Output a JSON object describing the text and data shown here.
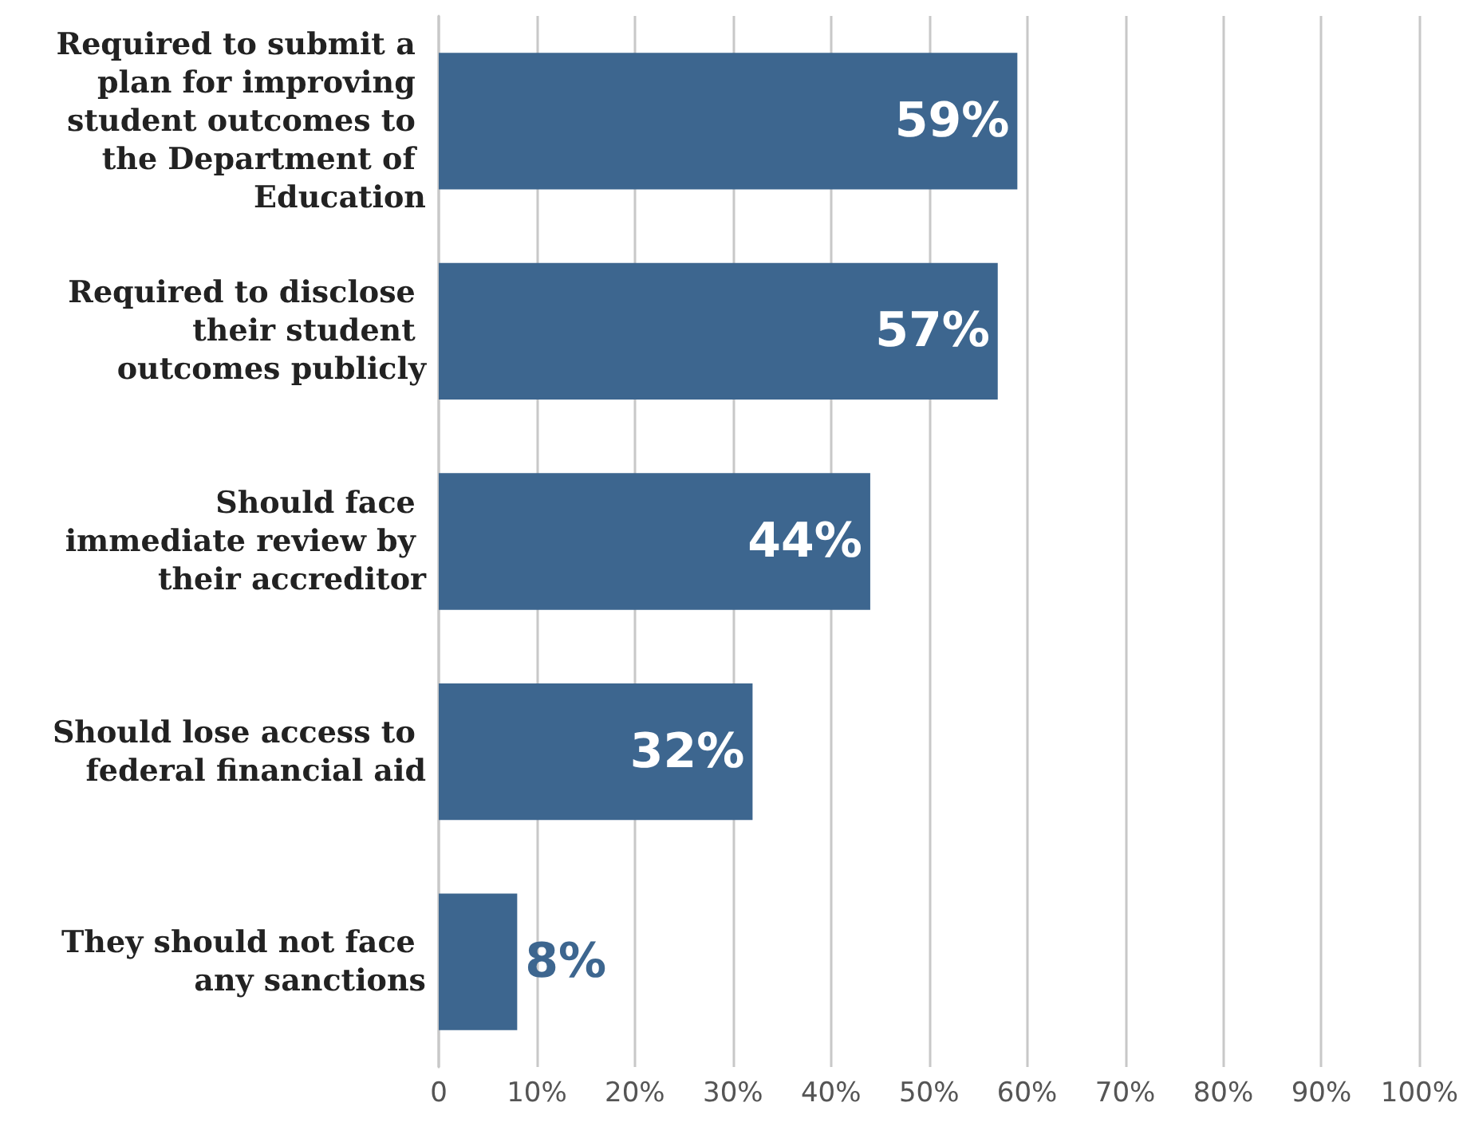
{
  "chart_data": {
    "type": "bar",
    "orientation": "horizontal",
    "categories": [
      "Required to submit a plan for improving student outcomes to the Department of Education",
      "Required to disclose their student outcomes publicly",
      "Should face immediate review by their accreditor",
      "Should lose access to federal financial aid",
      "They should not face any sanctions"
    ],
    "values": [
      59,
      57,
      44,
      32,
      8
    ],
    "value_labels": [
      "59%",
      "57%",
      "44%",
      "32%",
      "8%"
    ],
    "color": "#3d668f",
    "xlim": [
      0,
      100
    ],
    "xticks": [
      0,
      {
        "value": 10,
        "label": "10%"
      },
      {
        "value": 20,
        "label": "20%"
      },
      {
        "value": 30,
        "label": "30%"
      },
      {
        "value": 40,
        "label": "40%"
      },
      {
        "value": 50,
        "label": "50%"
      },
      {
        "value": 60,
        "label": "60%"
      },
      {
        "value": 70,
        "label": "70%"
      },
      {
        "value": 80,
        "label": "80%"
      },
      {
        "value": 90,
        "label": "90%"
      },
      {
        "value": 100,
        "label": "100%"
      }
    ],
    "grid": "x"
  }
}
